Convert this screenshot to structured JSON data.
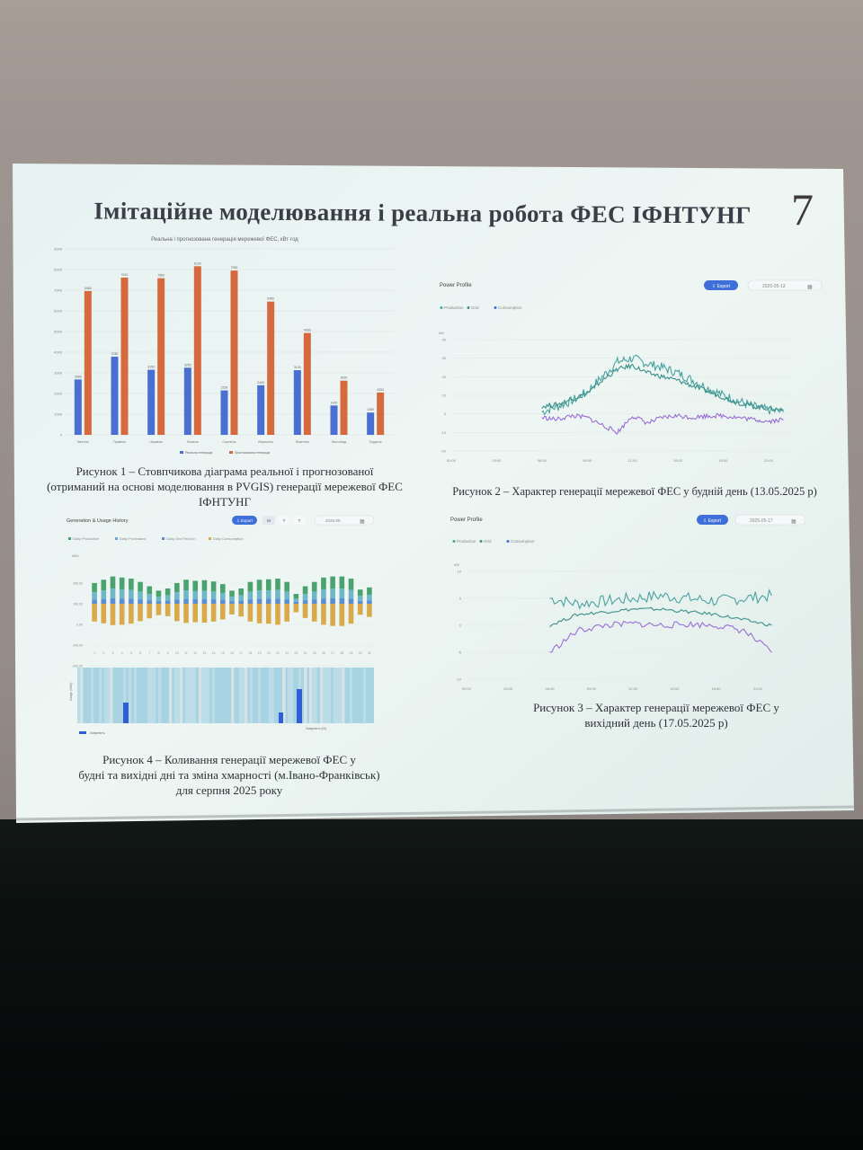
{
  "slide": {
    "title": "Імітаційне моделювання і реальна робота ФЕС ІФНТУНГ",
    "number": "7"
  },
  "figure1": {
    "caption_lines": [
      "Рисунок 1 – Стовпчикова діаграма реальної і прогнозованої",
      "(отриманий на основі моделювання в PVGIS)  генерації мережевої ФЕС",
      "ІФНТУНГ"
    ],
    "chart_data": {
      "type": "bar",
      "title": "Реальна і прогнозована генерація мережевої ФЕС, кВт·год",
      "categories": [
        "Квітень",
        "Травень",
        "Червень",
        "Липень",
        "Серпень",
        "Вересень",
        "Жовтень",
        "Листопад",
        "Грудень"
      ],
      "ylim": [
        0,
        9000
      ],
      "yticks": [
        "0",
        "1000",
        "2000",
        "3000",
        "4000",
        "5000",
        "6000",
        "7000",
        "8000",
        "9000"
      ],
      "series": [
        {
          "name": "Реальна генерація",
          "color": "#4a6fd1",
          "values": [
            2680,
            3780,
            3150,
            3250,
            2150,
            2400,
            3130,
            1420,
            1080
          ]
        },
        {
          "name": "Прогнозована генерація",
          "color": "#d66a3e",
          "values": [
            6960,
            7610,
            7580,
            8160,
            7950,
            6450,
            4930,
            2620,
            2050
          ]
        }
      ],
      "data_labels_real": [
        "2680",
        "3780",
        "3150",
        "3250",
        "2150",
        "2400",
        "3130",
        "1420",
        "1080"
      ],
      "data_labels_forecast": [
        "6960",
        "7610",
        "7580",
        "8160",
        "7950",
        "6450",
        "4930",
        "2620",
        "2050"
      ]
    }
  },
  "figure2": {
    "caption": "Рисунок 2 – Характер генерації мережевої ФЕС у будній день (13.05.2025 р)",
    "panel_title": "Power Profile",
    "export_label": "⇩ Export",
    "date_value": "2025-05-13",
    "legend": [
      "Production",
      "Grid",
      "Consumption"
    ],
    "chart_data": {
      "type": "line",
      "ylabel": "kW",
      "ylim": [
        -20,
        40
      ],
      "yticks": [
        "40",
        "30",
        "20",
        "10",
        "0",
        "-10",
        "-20"
      ],
      "xticks": [
        "00:00",
        "03:00",
        "06:00",
        "09:00",
        "12:00",
        "15:00",
        "18:00",
        "21:00"
      ],
      "series": [
        {
          "name": "Production",
          "color": "#4aa3a0",
          "x": [
            6,
            7,
            8,
            9,
            10,
            11,
            12,
            13,
            14,
            15,
            16,
            17,
            18,
            19,
            20,
            21,
            22
          ],
          "values": [
            1,
            4,
            7,
            12,
            20,
            28,
            30,
            27,
            25,
            22,
            18,
            14,
            10,
            7,
            4,
            2,
            1
          ]
        },
        {
          "name": "Grid",
          "color": "#3c8f8a",
          "x": [
            6,
            7,
            8,
            9,
            10,
            11,
            12,
            13,
            14,
            15,
            16,
            17,
            18,
            19,
            20,
            21,
            22
          ],
          "values": [
            4,
            5,
            8,
            11,
            18,
            24,
            26,
            22,
            20,
            18,
            15,
            12,
            9,
            6,
            4,
            3,
            2
          ]
        },
        {
          "name": "Consumption",
          "color": "#9a6ed6",
          "x": [
            6,
            7,
            8,
            9,
            10,
            11,
            12,
            13,
            14,
            15,
            16,
            17,
            18,
            19,
            20,
            21,
            22
          ],
          "values": [
            -2,
            -3,
            -1,
            -2,
            -6,
            -10,
            -1,
            -5,
            -2,
            -1,
            -2,
            -1,
            -1,
            -2,
            -3,
            -4,
            -3
          ]
        }
      ]
    }
  },
  "figure3": {
    "caption_lines": [
      "Рисунок 3 – Характер генерації мережевої ФЕС у",
      "вихідний день (17.05.2025 р)"
    ],
    "panel_title": "Power Profile",
    "export_label": "⇩ Export",
    "date_value": "2025-05-17",
    "legend": [
      "Production",
      "Grid",
      "Consumption"
    ],
    "chart_data": {
      "type": "line",
      "ylabel": "kW",
      "ylim": [
        -10,
        10
      ],
      "yticks": [
        "10",
        "5",
        "0",
        "-5",
        "-10"
      ],
      "xticks": [
        "00:00",
        "03:00",
        "06:00",
        "09:00",
        "12:00",
        "15:00",
        "18:00",
        "21:00"
      ],
      "series": [
        {
          "name": "Production",
          "color": "#4aa3a0",
          "x": [
            6,
            8,
            10,
            12,
            14,
            16,
            18,
            20,
            22
          ],
          "values": [
            5,
            4,
            4.5,
            5,
            5.5,
            5,
            4.5,
            5,
            5.5
          ]
        },
        {
          "name": "Grid",
          "color": "#3c8f8a",
          "x": [
            6,
            8,
            10,
            12,
            14,
            16,
            18,
            20,
            22
          ],
          "values": [
            0,
            2,
            2.5,
            3,
            3,
            2.5,
            2,
            1,
            0
          ]
        },
        {
          "name": "Consumption",
          "color": "#9a6ed6",
          "x": [
            6,
            8,
            10,
            12,
            14,
            16,
            18,
            20,
            22
          ],
          "values": [
            -5,
            -1,
            0,
            0.3,
            0,
            0.2,
            0,
            -1,
            -5
          ]
        }
      ]
    }
  },
  "figure4": {
    "caption_lines": [
      "Рисунок 4 – Коливання генерації мережевої ФЕС у",
      "будні та вихідні дні   та зміна хмарності (м.Івано-Франківськ)",
      "для серпня 2025 року"
    ],
    "panel_title": "Generation & Usage History",
    "export_label": "⇩ Export",
    "range_buttons": [
      "M",
      "Y",
      "T"
    ],
    "date_value": "2025-08",
    "legend": [
      "Daily Production",
      "Daily Purchased",
      "Daily Grid Feed-In",
      "Daily Consumption"
    ],
    "bottom_legend": "Хмарність",
    "cloud_axis_label": "Хмарність (%)",
    "usage_axis_label": "Usage (kWh)",
    "chart_data": {
      "type": "bar",
      "ylabel": "kWh",
      "yticks": [
        "200.00",
        "100.00",
        "0.00",
        "-100.00",
        "-200.00"
      ],
      "categories": [
        "1",
        "2",
        "3",
        "4",
        "5",
        "6",
        "7",
        "8",
        "9",
        "10",
        "11",
        "12",
        "13",
        "14",
        "15",
        "16",
        "17",
        "18",
        "19",
        "20",
        "21",
        "22",
        "23",
        "24",
        "25",
        "26",
        "27",
        "28",
        "29",
        "30",
        "31"
      ],
      "production": [
        95,
        110,
        125,
        120,
        115,
        100,
        80,
        60,
        70,
        95,
        110,
        105,
        108,
        102,
        90,
        60,
        70,
        100,
        110,
        112,
        115,
        100,
        45,
        80,
        100,
        120,
        125,
        125,
        115,
        65,
        75
      ],
      "consumption": [
        -100,
        -110,
        -120,
        -118,
        -112,
        -98,
        -82,
        -64,
        -70,
        -98,
        -108,
        -104,
        -106,
        -100,
        -88,
        -60,
        -72,
        -100,
        -110,
        -112,
        -118,
        -100,
        -48,
        -80,
        -100,
        -118,
        -125,
        -125,
        -112,
        -62,
        -74
      ]
    }
  }
}
